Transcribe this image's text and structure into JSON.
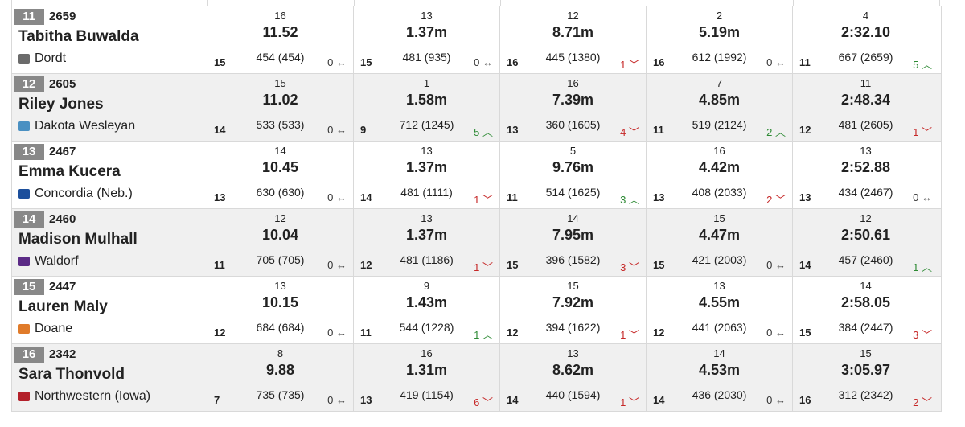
{
  "colors": {
    "up": "#2d8a34",
    "down": "#c62828",
    "same": "#333333",
    "badge": "#888888"
  },
  "rows": [
    {
      "rank": "11",
      "total": "2659",
      "name": "Tabitha Buwalda",
      "school": "Dordt",
      "logo_icon": "dordt-logo-icon",
      "logo_color": "#6b6b6b",
      "events": [
        {
          "place": "16",
          "mark": "11.52",
          "points": "454 (454)",
          "rank": "15",
          "move": "0 ↔",
          "dir": "same"
        },
        {
          "place": "13",
          "mark": "1.37m",
          "points": "481 (935)",
          "rank": "15",
          "move": "0 ↔",
          "dir": "same"
        },
        {
          "place": "12",
          "mark": "8.71m",
          "points": "445 (1380)",
          "rank": "16",
          "move": "1 ﹀",
          "dir": "down"
        },
        {
          "place": "2",
          "mark": "5.19m",
          "points": "612 (1992)",
          "rank": "16",
          "move": "0 ↔",
          "dir": "same"
        },
        {
          "place": "4",
          "mark": "2:32.10",
          "points": "667 (2659)",
          "rank": "11",
          "move": "5 ︿",
          "dir": "up"
        }
      ]
    },
    {
      "rank": "12",
      "total": "2605",
      "name": "Riley Jones",
      "school": "Dakota Wesleyan",
      "logo_icon": "dakota-wesleyan-logo-icon",
      "logo_color": "#4a90c2",
      "events": [
        {
          "place": "15",
          "mark": "11.02",
          "points": "533 (533)",
          "rank": "14",
          "move": "0 ↔",
          "dir": "same"
        },
        {
          "place": "1",
          "mark": "1.58m",
          "points": "712 (1245)",
          "rank": "9",
          "move": "5 ︿",
          "dir": "up"
        },
        {
          "place": "16",
          "mark": "7.39m",
          "points": "360 (1605)",
          "rank": "13",
          "move": "4 ﹀",
          "dir": "down"
        },
        {
          "place": "7",
          "mark": "4.85m",
          "points": "519 (2124)",
          "rank": "11",
          "move": "2 ︿",
          "dir": "up"
        },
        {
          "place": "11",
          "mark": "2:48.34",
          "points": "481 (2605)",
          "rank": "12",
          "move": "1 ﹀",
          "dir": "down"
        }
      ]
    },
    {
      "rank": "13",
      "total": "2467",
      "name": "Emma Kucera",
      "school": "Concordia (Neb.)",
      "logo_icon": "concordia-logo-icon",
      "logo_color": "#1c4f9c",
      "events": [
        {
          "place": "14",
          "mark": "10.45",
          "points": "630 (630)",
          "rank": "13",
          "move": "0 ↔",
          "dir": "same"
        },
        {
          "place": "13",
          "mark": "1.37m",
          "points": "481 (1111)",
          "rank": "14",
          "move": "1 ﹀",
          "dir": "down"
        },
        {
          "place": "5",
          "mark": "9.76m",
          "points": "514 (1625)",
          "rank": "11",
          "move": "3 ︿",
          "dir": "up"
        },
        {
          "place": "16",
          "mark": "4.42m",
          "points": "408 (2033)",
          "rank": "13",
          "move": "2 ﹀",
          "dir": "down"
        },
        {
          "place": "13",
          "mark": "2:52.88",
          "points": "434 (2467)",
          "rank": "13",
          "move": "0 ↔",
          "dir": "same"
        }
      ]
    },
    {
      "rank": "14",
      "total": "2460",
      "name": "Madison Mulhall",
      "school": "Waldorf",
      "logo_icon": "waldorf-logo-icon",
      "logo_color": "#5b2a86",
      "events": [
        {
          "place": "12",
          "mark": "10.04",
          "points": "705 (705)",
          "rank": "11",
          "move": "0 ↔",
          "dir": "same"
        },
        {
          "place": "13",
          "mark": "1.37m",
          "points": "481 (1186)",
          "rank": "12",
          "move": "1 ﹀",
          "dir": "down"
        },
        {
          "place": "14",
          "mark": "7.95m",
          "points": "396 (1582)",
          "rank": "15",
          "move": "3 ﹀",
          "dir": "down"
        },
        {
          "place": "15",
          "mark": "4.47m",
          "points": "421 (2003)",
          "rank": "15",
          "move": "0 ↔",
          "dir": "same"
        },
        {
          "place": "12",
          "mark": "2:50.61",
          "points": "457 (2460)",
          "rank": "14",
          "move": "1 ︿",
          "dir": "up"
        }
      ]
    },
    {
      "rank": "15",
      "total": "2447",
      "name": "Lauren Maly",
      "school": "Doane",
      "logo_icon": "doane-logo-icon",
      "logo_color": "#e07b2a",
      "events": [
        {
          "place": "13",
          "mark": "10.15",
          "points": "684 (684)",
          "rank": "12",
          "move": "0 ↔",
          "dir": "same"
        },
        {
          "place": "9",
          "mark": "1.43m",
          "points": "544 (1228)",
          "rank": "11",
          "move": "1 ︿",
          "dir": "up"
        },
        {
          "place": "15",
          "mark": "7.92m",
          "points": "394 (1622)",
          "rank": "12",
          "move": "1 ﹀",
          "dir": "down"
        },
        {
          "place": "13",
          "mark": "4.55m",
          "points": "441 (2063)",
          "rank": "12",
          "move": "0 ↔",
          "dir": "same"
        },
        {
          "place": "14",
          "mark": "2:58.05",
          "points": "384 (2447)",
          "rank": "15",
          "move": "3 ﹀",
          "dir": "down"
        }
      ]
    },
    {
      "rank": "16",
      "total": "2342",
      "name": "Sara Thonvold",
      "school": "Northwestern (Iowa)",
      "logo_icon": "northwestern-logo-icon",
      "logo_color": "#b3202a",
      "events": [
        {
          "place": "8",
          "mark": "9.88",
          "points": "735 (735)",
          "rank": "7",
          "move": "0 ↔",
          "dir": "same"
        },
        {
          "place": "16",
          "mark": "1.31m",
          "points": "419 (1154)",
          "rank": "13",
          "move": "6 ﹀",
          "dir": "down"
        },
        {
          "place": "13",
          "mark": "8.62m",
          "points": "440 (1594)",
          "rank": "14",
          "move": "1 ﹀",
          "dir": "down"
        },
        {
          "place": "14",
          "mark": "4.53m",
          "points": "436 (2030)",
          "rank": "14",
          "move": "0 ↔",
          "dir": "same"
        },
        {
          "place": "15",
          "mark": "3:05.97",
          "points": "312 (2342)",
          "rank": "16",
          "move": "2 ﹀",
          "dir": "down"
        }
      ]
    }
  ]
}
